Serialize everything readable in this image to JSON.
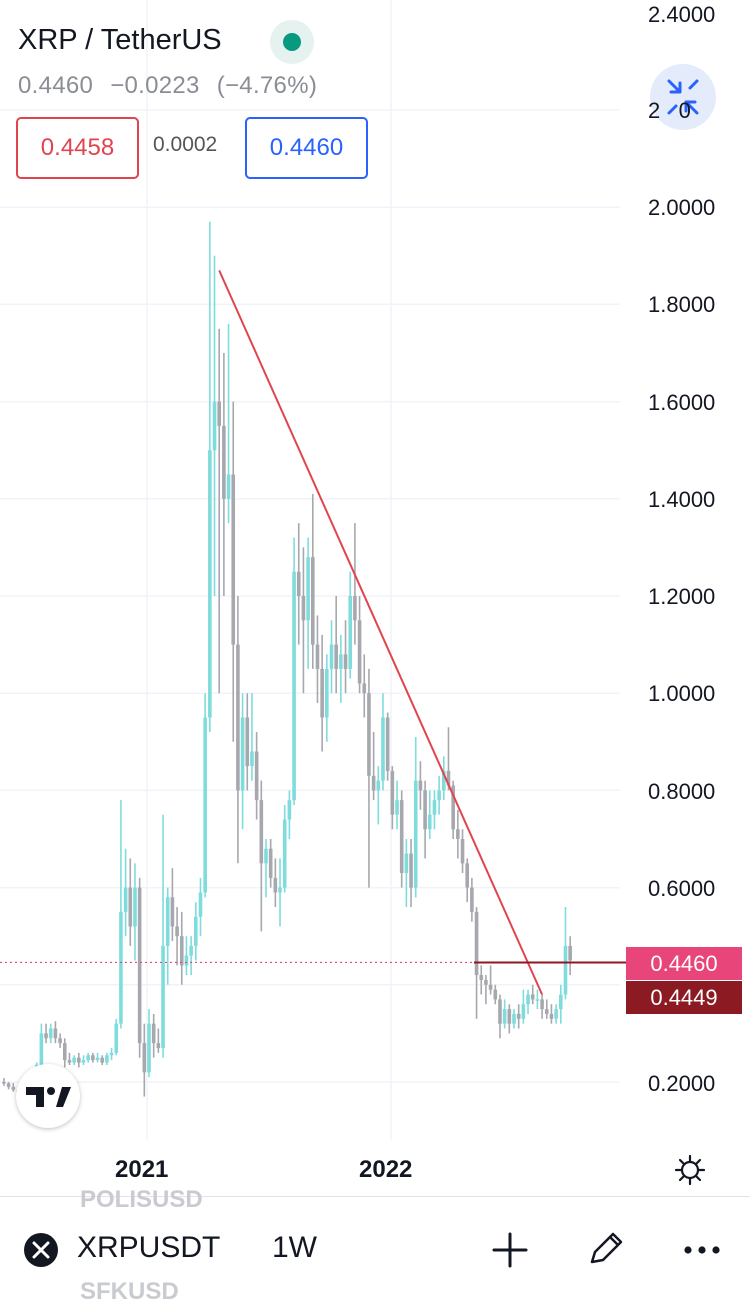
{
  "header": {
    "symbol_title": "XRP / TetherUS",
    "last_price": "0.4460",
    "change": "−0.0223",
    "change_percent": "(−4.76%)",
    "sell_price": "0.4458",
    "spread": "0.0002",
    "buy_price": "0.4460"
  },
  "colors": {
    "up": "#7fdcdc",
    "down": "#a7a7ae",
    "trendline": "#e0454f",
    "last_price_tag": "#e8457a",
    "second_price_tag": "#8b1a22",
    "status": "#089981",
    "accent": "#2962ff"
  },
  "icons": {
    "status": "status-dot-icon",
    "collapse": "collapse-arrows-icon",
    "logo": "tradingview-logo-icon",
    "settings": "gear-icon",
    "symbol": "xrp-coin-icon",
    "add": "plus-icon",
    "draw": "pencil-icon",
    "more": "more-dots-icon"
  },
  "bottom_bar": {
    "symbol": "XRPUSDT",
    "interval": "1W",
    "ghost_above": "POLISUSD",
    "ghost_below": "SFKUSD"
  },
  "chart_data": {
    "type": "candlestick",
    "timeframe": "1W",
    "x_tick_labels": [
      "2021",
      "2022"
    ],
    "y_tick_labels": [
      "0.2000",
      "0.6000",
      "0.8000",
      "1.0000",
      "1.2000",
      "1.4000",
      "1.6000",
      "1.8000",
      "2.0000",
      "2.4000"
    ],
    "y_partial_label": "2   0",
    "ylim": [
      0.1,
      2.4
    ],
    "last_price_label": "0.4460",
    "second_price_label": "0.4449",
    "last_price": 0.446,
    "second_price": 0.4449,
    "trendline": {
      "start": [
        "2021-04-19",
        1.87
      ],
      "end": [
        "2022-08-15",
        0.38
      ]
    },
    "grid": true,
    "candles": [
      [
        "2020-06-01",
        0.2,
        0.208,
        0.192,
        0.197
      ],
      [
        "2020-06-08",
        0.197,
        0.2,
        0.185,
        0.19
      ],
      [
        "2020-06-15",
        0.19,
        0.198,
        0.18,
        0.184
      ],
      [
        "2020-06-22",
        0.184,
        0.19,
        0.17,
        0.176
      ],
      [
        "2020-06-29",
        0.176,
        0.186,
        0.172,
        0.18
      ],
      [
        "2020-07-06",
        0.18,
        0.2,
        0.178,
        0.195
      ],
      [
        "2020-07-13",
        0.195,
        0.2,
        0.186,
        0.19
      ],
      [
        "2020-07-20",
        0.19,
        0.24,
        0.19,
        0.235
      ],
      [
        "2020-07-27",
        0.235,
        0.32,
        0.23,
        0.3
      ],
      [
        "2020-08-03",
        0.3,
        0.32,
        0.28,
        0.29
      ],
      [
        "2020-08-10",
        0.29,
        0.32,
        0.28,
        0.31
      ],
      [
        "2020-08-17",
        0.31,
        0.325,
        0.28,
        0.29
      ],
      [
        "2020-08-24",
        0.29,
        0.3,
        0.27,
        0.28
      ],
      [
        "2020-08-31",
        0.28,
        0.29,
        0.23,
        0.245
      ],
      [
        "2020-09-07",
        0.245,
        0.26,
        0.235,
        0.24
      ],
      [
        "2020-09-14",
        0.24,
        0.255,
        0.235,
        0.25
      ],
      [
        "2020-09-21",
        0.25,
        0.26,
        0.23,
        0.24
      ],
      [
        "2020-09-28",
        0.24,
        0.255,
        0.235,
        0.245
      ],
      [
        "2020-10-05",
        0.245,
        0.26,
        0.24,
        0.255
      ],
      [
        "2020-10-12",
        0.255,
        0.26,
        0.24,
        0.245
      ],
      [
        "2020-10-19",
        0.245,
        0.26,
        0.24,
        0.25
      ],
      [
        "2020-10-26",
        0.25,
        0.255,
        0.235,
        0.24
      ],
      [
        "2020-11-02",
        0.24,
        0.26,
        0.235,
        0.255
      ],
      [
        "2020-11-09",
        0.255,
        0.27,
        0.245,
        0.26
      ],
      [
        "2020-11-16",
        0.26,
        0.33,
        0.255,
        0.32
      ],
      [
        "2020-11-23",
        0.32,
        0.78,
        0.31,
        0.55
      ],
      [
        "2020-11-30",
        0.55,
        0.68,
        0.5,
        0.6
      ],
      [
        "2020-12-07",
        0.6,
        0.66,
        0.48,
        0.52
      ],
      [
        "2020-12-14",
        0.52,
        0.65,
        0.45,
        0.6
      ],
      [
        "2020-12-21",
        0.6,
        0.62,
        0.25,
        0.28
      ],
      [
        "2020-12-28",
        0.28,
        0.32,
        0.17,
        0.22
      ],
      [
        "2021-01-04",
        0.22,
        0.35,
        0.21,
        0.32
      ],
      [
        "2021-01-11",
        0.32,
        0.34,
        0.25,
        0.28
      ],
      [
        "2021-01-18",
        0.28,
        0.31,
        0.26,
        0.27
      ],
      [
        "2021-01-25",
        0.27,
        0.75,
        0.25,
        0.48
      ],
      [
        "2021-02-01",
        0.48,
        0.6,
        0.4,
        0.58
      ],
      [
        "2021-02-08",
        0.58,
        0.64,
        0.49,
        0.52
      ],
      [
        "2021-02-15",
        0.52,
        0.56,
        0.44,
        0.5
      ],
      [
        "2021-02-22",
        0.5,
        0.55,
        0.4,
        0.44
      ],
      [
        "2021-03-01",
        0.44,
        0.5,
        0.42,
        0.46
      ],
      [
        "2021-03-08",
        0.46,
        0.5,
        0.42,
        0.48
      ],
      [
        "2021-03-15",
        0.48,
        0.57,
        0.45,
        0.54
      ],
      [
        "2021-03-22",
        0.54,
        0.62,
        0.5,
        0.59
      ],
      [
        "2021-03-29",
        0.59,
        1.0,
        0.58,
        0.95
      ],
      [
        "2021-04-05",
        0.95,
        1.97,
        0.92,
        1.5
      ],
      [
        "2021-04-12",
        1.5,
        1.9,
        1.2,
        1.6
      ],
      [
        "2021-04-19",
        1.6,
        1.75,
        1.0,
        1.55
      ],
      [
        "2021-04-26",
        1.55,
        1.7,
        1.2,
        1.4
      ],
      [
        "2021-05-03",
        1.4,
        1.76,
        1.35,
        1.45
      ],
      [
        "2021-05-10",
        1.45,
        1.6,
        0.9,
        1.1
      ],
      [
        "2021-05-17",
        1.1,
        1.2,
        0.65,
        0.8
      ],
      [
        "2021-05-24",
        0.8,
        1.0,
        0.72,
        0.95
      ],
      [
        "2021-05-31",
        0.95,
        1.0,
        0.8,
        0.85
      ],
      [
        "2021-06-07",
        0.85,
        1.0,
        0.82,
        0.88
      ],
      [
        "2021-06-14",
        0.88,
        0.92,
        0.74,
        0.78
      ],
      [
        "2021-06-21",
        0.78,
        0.82,
        0.51,
        0.65
      ],
      [
        "2021-06-28",
        0.65,
        0.7,
        0.58,
        0.68
      ],
      [
        "2021-07-05",
        0.68,
        0.7,
        0.6,
        0.62
      ],
      [
        "2021-07-12",
        0.62,
        0.66,
        0.56,
        0.59
      ],
      [
        "2021-07-19",
        0.59,
        0.66,
        0.52,
        0.6
      ],
      [
        "2021-07-26",
        0.6,
        0.77,
        0.59,
        0.74
      ],
      [
        "2021-08-02",
        0.74,
        0.8,
        0.7,
        0.78
      ],
      [
        "2021-08-09",
        0.78,
        1.32,
        0.77,
        1.25
      ],
      [
        "2021-08-16",
        1.25,
        1.35,
        1.1,
        1.2
      ],
      [
        "2021-08-23",
        1.2,
        1.3,
        1.0,
        1.15
      ],
      [
        "2021-08-30",
        1.15,
        1.32,
        1.05,
        1.28
      ],
      [
        "2021-09-06",
        1.28,
        1.41,
        1.05,
        1.1
      ],
      [
        "2021-09-13",
        1.1,
        1.16,
        0.98,
        1.05
      ],
      [
        "2021-09-20",
        1.05,
        1.12,
        0.88,
        0.95
      ],
      [
        "2021-09-27",
        0.95,
        1.08,
        0.9,
        1.05
      ],
      [
        "2021-10-04",
        1.05,
        1.15,
        1.0,
        1.1
      ],
      [
        "2021-10-11",
        1.1,
        1.2,
        1.0,
        1.05
      ],
      [
        "2021-10-18",
        1.05,
        1.12,
        0.98,
        1.08
      ],
      [
        "2021-10-25",
        1.08,
        1.15,
        1.0,
        1.05
      ],
      [
        "2021-11-01",
        1.05,
        1.25,
        1.03,
        1.2
      ],
      [
        "2021-11-08",
        1.2,
        1.35,
        1.1,
        1.15
      ],
      [
        "2021-11-15",
        1.15,
        1.2,
        1.0,
        1.02
      ],
      [
        "2021-11-22",
        1.02,
        1.08,
        0.95,
        1.0
      ],
      [
        "2021-11-29",
        1.0,
        1.05,
        0.6,
        0.83
      ],
      [
        "2021-12-06",
        0.83,
        0.92,
        0.78,
        0.8
      ],
      [
        "2021-12-13",
        0.8,
        0.85,
        0.73,
        0.82
      ],
      [
        "2021-12-20",
        0.82,
        1.0,
        0.8,
        0.95
      ],
      [
        "2021-12-27",
        0.95,
        0.96,
        0.82,
        0.84
      ],
      [
        "2022-01-03",
        0.84,
        0.85,
        0.72,
        0.75
      ],
      [
        "2022-01-10",
        0.75,
        0.82,
        0.72,
        0.78
      ],
      [
        "2022-01-17",
        0.78,
        0.8,
        0.6,
        0.63
      ],
      [
        "2022-01-24",
        0.63,
        0.7,
        0.56,
        0.67
      ],
      [
        "2022-01-31",
        0.67,
        0.7,
        0.56,
        0.6
      ],
      [
        "2022-02-07",
        0.6,
        0.91,
        0.58,
        0.82
      ],
      [
        "2022-02-14",
        0.82,
        0.86,
        0.76,
        0.8
      ],
      [
        "2022-02-21",
        0.8,
        0.82,
        0.66,
        0.72
      ],
      [
        "2022-02-28",
        0.72,
        0.8,
        0.7,
        0.75
      ],
      [
        "2022-03-07",
        0.75,
        0.8,
        0.72,
        0.78
      ],
      [
        "2022-03-14",
        0.78,
        0.83,
        0.75,
        0.8
      ],
      [
        "2022-03-21",
        0.8,
        0.87,
        0.78,
        0.84
      ],
      [
        "2022-03-28",
        0.84,
        0.93,
        0.8,
        0.81
      ],
      [
        "2022-04-04",
        0.81,
        0.82,
        0.7,
        0.72
      ],
      [
        "2022-04-11",
        0.72,
        0.76,
        0.66,
        0.7
      ],
      [
        "2022-04-18",
        0.7,
        0.72,
        0.63,
        0.65
      ],
      [
        "2022-04-25",
        0.65,
        0.66,
        0.57,
        0.6
      ],
      [
        "2022-05-02",
        0.6,
        0.62,
        0.53,
        0.55
      ],
      [
        "2022-05-09",
        0.55,
        0.56,
        0.33,
        0.42
      ],
      [
        "2022-05-16",
        0.42,
        0.44,
        0.38,
        0.41
      ],
      [
        "2022-05-23",
        0.41,
        0.42,
        0.36,
        0.4
      ],
      [
        "2022-05-30",
        0.4,
        0.44,
        0.38,
        0.39
      ],
      [
        "2022-06-06",
        0.39,
        0.4,
        0.36,
        0.37
      ],
      [
        "2022-06-13",
        0.37,
        0.38,
        0.29,
        0.32
      ],
      [
        "2022-06-20",
        0.32,
        0.37,
        0.31,
        0.35
      ],
      [
        "2022-06-27",
        0.35,
        0.36,
        0.3,
        0.32
      ],
      [
        "2022-07-04",
        0.32,
        0.35,
        0.31,
        0.34
      ],
      [
        "2022-07-11",
        0.34,
        0.36,
        0.31,
        0.33
      ],
      [
        "2022-07-18",
        0.33,
        0.39,
        0.32,
        0.36
      ],
      [
        "2022-07-25",
        0.36,
        0.39,
        0.34,
        0.38
      ],
      [
        "2022-08-01",
        0.38,
        0.4,
        0.36,
        0.37
      ],
      [
        "2022-08-08",
        0.37,
        0.39,
        0.35,
        0.37
      ],
      [
        "2022-08-15",
        0.37,
        0.38,
        0.33,
        0.35
      ],
      [
        "2022-08-22",
        0.35,
        0.37,
        0.33,
        0.34
      ],
      [
        "2022-08-29",
        0.34,
        0.36,
        0.32,
        0.33
      ],
      [
        "2022-09-05",
        0.33,
        0.36,
        0.32,
        0.35
      ],
      [
        "2022-09-12",
        0.35,
        0.4,
        0.32,
        0.38
      ],
      [
        "2022-09-19",
        0.38,
        0.56,
        0.37,
        0.48
      ],
      [
        "2022-09-26",
        0.48,
        0.5,
        0.42,
        0.45
      ]
    ]
  }
}
